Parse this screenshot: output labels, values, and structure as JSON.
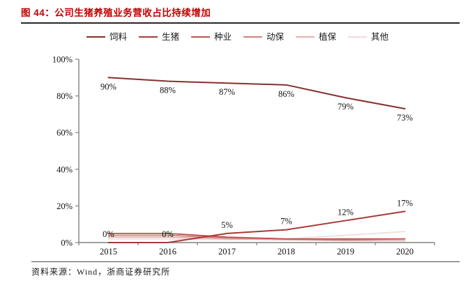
{
  "header": {
    "title": "图 44：公司生猪养殖业务营收占比持续增加"
  },
  "footer": {
    "source": "资料来源：Wind，浙商证券研究所"
  },
  "colors": {
    "title_red": "#c00000",
    "axis_gray": "#808080",
    "label_text": "#111111"
  },
  "chart_data": {
    "type": "line",
    "title": "公司生猪养殖业务营收占比持续增加",
    "categories": [
      "2015",
      "2016",
      "2017",
      "2018",
      "2019",
      "2020"
    ],
    "y_ticks": [
      "0%",
      "20%",
      "40%",
      "60%",
      "80%",
      "100%"
    ],
    "ylim": [
      0,
      100
    ],
    "grid": false,
    "legend_position": "top",
    "series": [
      {
        "name": "饲料",
        "color": "#84302d",
        "values": [
          90,
          88,
          87,
          86,
          79,
          73
        ],
        "labels": [
          "90%",
          "88%",
          "87%",
          "86%",
          "79%",
          "73%"
        ],
        "label_position": "below"
      },
      {
        "name": "生猪",
        "color": "#a83a35",
        "values": [
          0,
          0,
          5,
          7,
          12,
          17
        ],
        "labels": [
          "0%",
          "0%",
          "5%",
          "7%",
          "12%",
          "17%"
        ],
        "label_position": "above"
      },
      {
        "name": "种业",
        "color": "#c0504d",
        "values": [
          5,
          5,
          3,
          2,
          2,
          2
        ]
      },
      {
        "name": "动保",
        "color": "#d08481",
        "values": [
          4,
          4,
          2.5,
          2,
          1.5,
          2
        ]
      },
      {
        "name": "植保",
        "color": "#e2b2b0",
        "values": [
          3,
          3,
          2,
          1.5,
          1,
          1
        ]
      },
      {
        "name": "其他",
        "color": "#f2dcdb",
        "values": [
          2,
          2,
          1.5,
          2,
          4,
          6
        ]
      }
    ]
  }
}
